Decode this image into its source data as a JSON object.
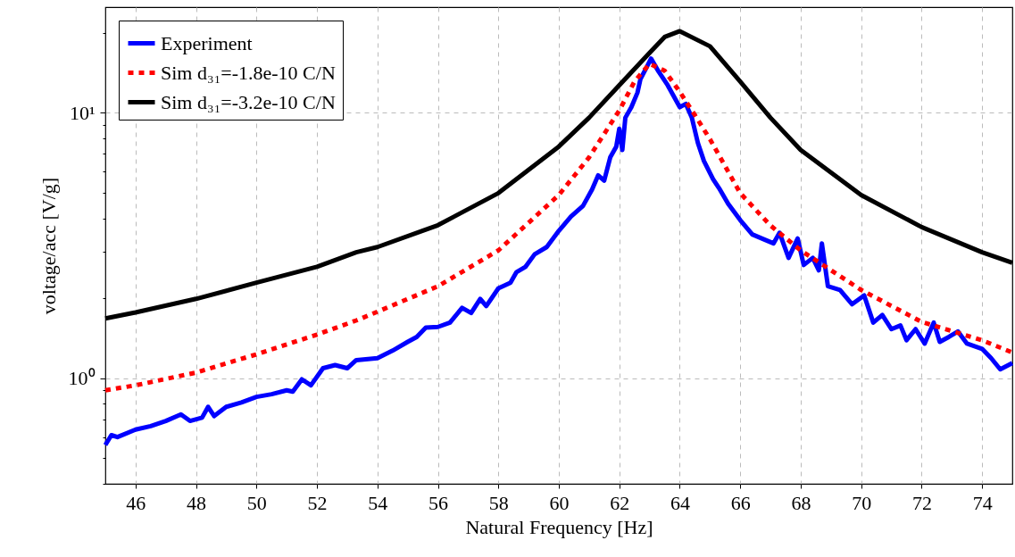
{
  "chart_data": {
    "type": "line",
    "xlabel": "Natural Frequency [Hz]",
    "ylabel": "voltage/acc [V/g]",
    "xlim": [
      45,
      75
    ],
    "xticks": [
      46,
      48,
      50,
      52,
      54,
      56,
      58,
      60,
      62,
      64,
      66,
      68,
      70,
      72,
      74
    ],
    "ylim": [
      0.4,
      25
    ],
    "yticks": [
      {
        "value": 0.4,
        "label": null
      },
      {
        "value": 0.5,
        "label": null
      },
      {
        "value": 0.6,
        "label": null
      },
      {
        "value": 0.7,
        "label": null
      },
      {
        "value": 0.8,
        "label": null
      },
      {
        "value": 0.9,
        "label": null
      },
      {
        "value": 1,
        "label": "10⁰"
      },
      {
        "value": 2,
        "label": null
      },
      {
        "value": 3,
        "label": null
      },
      {
        "value": 4,
        "label": null
      },
      {
        "value": 5,
        "label": null
      },
      {
        "value": 6,
        "label": null
      },
      {
        "value": 7,
        "label": null
      },
      {
        "value": 8,
        "label": null
      },
      {
        "value": 9,
        "label": null
      },
      {
        "value": 10,
        "label": "10¹"
      },
      {
        "value": 20,
        "label": null
      }
    ],
    "log": "y",
    "grid": true,
    "legend": "top left",
    "marker": "none",
    "series": [
      {
        "name": "Experiment",
        "color": "#0000ff",
        "line_style": "solid",
        "x": [
          45,
          45.2,
          45.4,
          46,
          46.5,
          47,
          47.5,
          47.8,
          48.2,
          48.4,
          48.6,
          49,
          49.5,
          50,
          50.5,
          51,
          51.2,
          51.5,
          51.8,
          52.2,
          52.6,
          53,
          53.3,
          54,
          54.5,
          55,
          55.3,
          55.6,
          56,
          56.4,
          56.8,
          57.1,
          57.4,
          57.6,
          58,
          58.4,
          58.6,
          58.9,
          59.2,
          59.6,
          60,
          60.4,
          60.8,
          61.1,
          61.3,
          61.5,
          61.7,
          61.9,
          62,
          62.1,
          62.2,
          62.4,
          62.6,
          62.7,
          62.9,
          63.05,
          63.3,
          63.6,
          64,
          64.2,
          64.4,
          64.6,
          64.8,
          65.1,
          65.3,
          65.6,
          66,
          66.4,
          66.8,
          67.1,
          67.3,
          67.6,
          67.9,
          68.1,
          68.4,
          68.6,
          68.7,
          68.9,
          69.3,
          69.7,
          70.1,
          70.4,
          70.7,
          71,
          71.3,
          71.5,
          71.8,
          72.1,
          72.4,
          72.6,
          72.9,
          73.2,
          73.5,
          74,
          74.3,
          74.6,
          75
        ],
        "values": [
          0.56,
          0.61,
          0.6,
          0.64,
          0.66,
          0.69,
          0.73,
          0.69,
          0.71,
          0.78,
          0.72,
          0.78,
          0.81,
          0.85,
          0.87,
          0.9,
          0.89,
          0.99,
          0.94,
          1.09,
          1.12,
          1.09,
          1.17,
          1.19,
          1.27,
          1.37,
          1.43,
          1.55,
          1.56,
          1.62,
          1.84,
          1.76,
          1.99,
          1.87,
          2.18,
          2.29,
          2.51,
          2.63,
          2.93,
          3.12,
          3.59,
          4.06,
          4.46,
          5.14,
          5.81,
          5.55,
          6.79,
          7.46,
          8.71,
          7.24,
          9.58,
          10.5,
          11.9,
          13.4,
          14.8,
          16.0,
          14.3,
          12.7,
          10.5,
          10.8,
          9.58,
          7.69,
          6.58,
          5.63,
          5.2,
          4.54,
          3.94,
          3.48,
          3.33,
          3.22,
          3.53,
          2.84,
          3.36,
          2.67,
          2.84,
          2.55,
          3.22,
          2.22,
          2.15,
          1.9,
          2.05,
          1.62,
          1.73,
          1.53,
          1.58,
          1.39,
          1.53,
          1.35,
          1.62,
          1.37,
          1.43,
          1.5,
          1.35,
          1.29,
          1.19,
          1.08,
          1.14
        ]
      },
      {
        "name": "Sim d₃₁=-1.8e-10 C/N",
        "color": "#ff0000",
        "line_style": "dotted",
        "x": [
          45,
          46,
          48,
          50,
          52,
          53.3,
          54,
          56,
          58,
          60,
          61,
          62,
          62.5,
          63,
          63.5,
          64,
          64.5,
          65,
          66,
          67,
          68,
          70,
          72,
          74,
          75
        ],
        "values": [
          0.9,
          0.94,
          1.05,
          1.23,
          1.46,
          1.65,
          1.78,
          2.22,
          3.03,
          4.9,
          6.79,
          10.2,
          13.1,
          15.3,
          14.4,
          12.0,
          9.8,
          7.95,
          4.98,
          3.76,
          3.03,
          2.15,
          1.63,
          1.39,
          1.25
        ]
      },
      {
        "name": "Sim d₃₁=-3.2e-10 C/N",
        "color": "#000000",
        "line_style": "solid",
        "x": [
          45,
          46,
          48,
          50,
          52,
          53.3,
          54,
          56,
          58,
          60,
          61,
          62,
          63,
          63.5,
          64,
          65,
          66,
          67,
          68,
          70,
          72,
          74,
          75
        ],
        "values": [
          1.68,
          1.77,
          1.99,
          2.29,
          2.63,
          2.98,
          3.12,
          3.77,
          4.98,
          7.46,
          9.58,
          12.7,
          16.8,
          19.3,
          20.3,
          17.8,
          13.1,
          9.58,
          7.24,
          4.9,
          3.71,
          2.98,
          2.72
        ]
      }
    ]
  }
}
